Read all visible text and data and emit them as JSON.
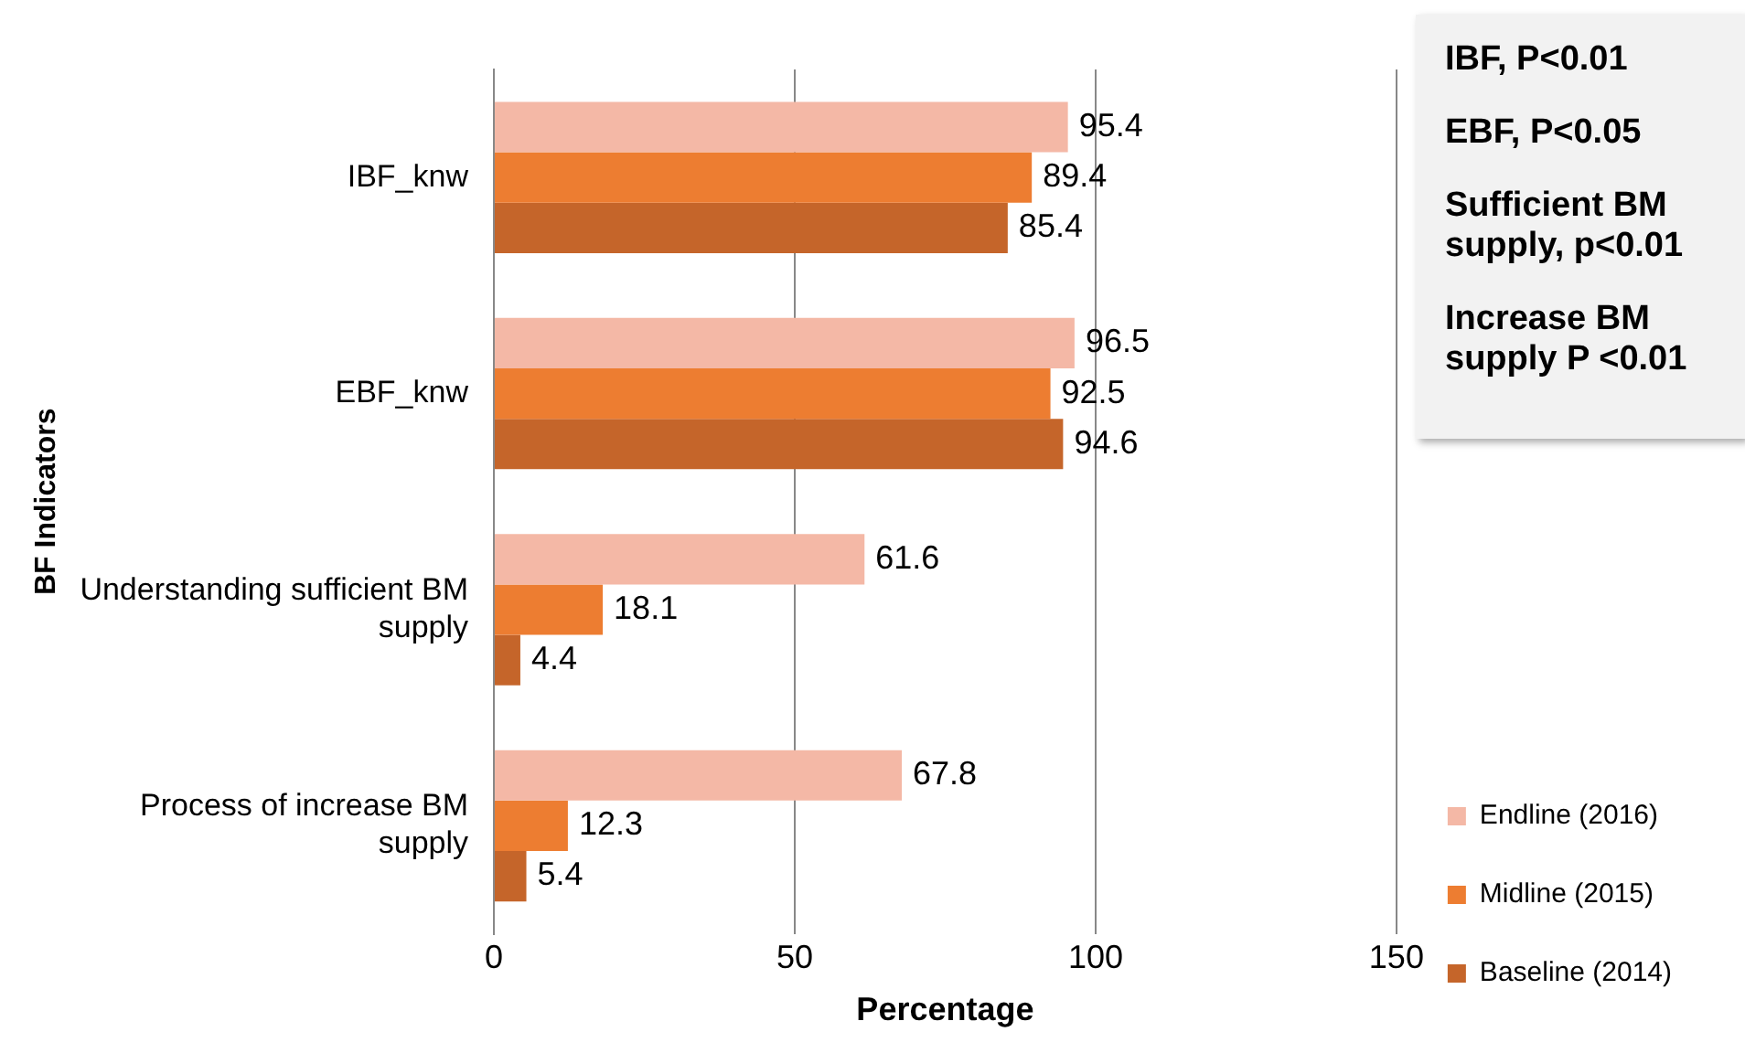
{
  "chart_data": {
    "type": "bar",
    "orientation": "horizontal",
    "ylabel": "BF Indicators",
    "xlabel": "Percentage",
    "categories": [
      "IBF_knw",
      "EBF_knw",
      "Understanding sufficient BM supply",
      "Process of increase BM supply"
    ],
    "series": [
      {
        "name": "Endline (2016)",
        "color": "#f4b8a6",
        "values": [
          95.4,
          96.5,
          61.6,
          67.8
        ]
      },
      {
        "name": "Midline (2015)",
        "color": "#ed7d31",
        "values": [
          89.4,
          92.5,
          18.1,
          12.3
        ]
      },
      {
        "name": "Baseline (2014)",
        "color": "#c5652a",
        "values": [
          85.4,
          94.6,
          4.4,
          5.4
        ]
      }
    ],
    "xlim": [
      0,
      150
    ],
    "xticks": [
      0,
      50,
      100,
      150
    ],
    "grid": "x",
    "data_labels": true,
    "legend": "right",
    "annotations": [
      "IBF, P<0.01",
      "EBF, P<0.05",
      "Sufficient BM supply, p<0.01",
      "Increase BM supply P <0.01"
    ]
  }
}
